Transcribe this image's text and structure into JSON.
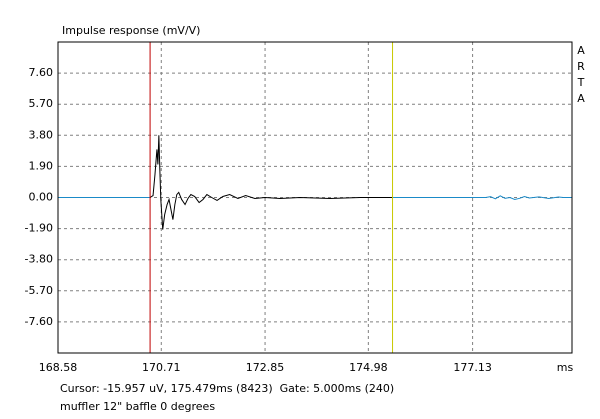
{
  "chart_data": {
    "type": "line",
    "title": "Impulse response (mV/V)",
    "brand": "ARTA",
    "x_label": "ms",
    "annotations": [
      "Cursor: -15.957 uV, 175.479ms (8423)  Gate: 5.000ms (240)",
      "muffler 12\" baffle 0 degrees"
    ],
    "xlim": [
      168.58,
      179.18
    ],
    "ylim": [
      -9.5,
      9.5
    ],
    "xticks": [
      168.58,
      170.71,
      172.85,
      174.98,
      177.13
    ],
    "yticks": [
      {
        "value": 7.6,
        "label": "7.60"
      },
      {
        "value": 5.7,
        "label": "5.70"
      },
      {
        "value": 3.8,
        "label": "3.80"
      },
      {
        "value": 1.9,
        "label": "1.90"
      },
      {
        "value": 0,
        "label": "0.00"
      },
      {
        "value": -1.9,
        "label": "-1.90"
      },
      {
        "value": -3.8,
        "label": "-3.80"
      },
      {
        "value": -5.7,
        "label": "-5.70"
      },
      {
        "value": -7.6,
        "label": "-7.60"
      }
    ],
    "grid": true,
    "markers": [
      {
        "x": 170.479,
        "color": "#c00000"
      },
      {
        "x": 175.479,
        "color": "#c8c800"
      }
    ],
    "series": [
      {
        "color": "#1a8ac8",
        "x": [
          168.58,
          170.48,
          null,
          175.48,
          177.4,
          177.5,
          177.6,
          177.7,
          177.8,
          177.9,
          178.0,
          178.1,
          178.2,
          178.3,
          178.5,
          178.7,
          178.9,
          179.0,
          179.18
        ],
        "values": [
          0,
          0,
          null,
          0,
          0,
          0.05,
          -0.08,
          0.1,
          -0.05,
          0,
          -0.12,
          -0.05,
          0.06,
          -0.03,
          0.04,
          -0.06,
          0.03,
          0,
          0
        ]
      },
      {
        "color": "#000000",
        "x": [
          170.48,
          170.54,
          170.58,
          170.62,
          170.64,
          170.66,
          170.68,
          170.7,
          170.74,
          170.78,
          170.83,
          170.87,
          170.91,
          170.95,
          170.99,
          171.03,
          171.07,
          171.13,
          171.2,
          171.26,
          171.32,
          171.4,
          171.49,
          171.57,
          171.65,
          171.75,
          171.86,
          171.98,
          172.12,
          172.29,
          172.45,
          172.64,
          172.85,
          173.16,
          173.57,
          174.19,
          174.81,
          175.48
        ],
        "values": [
          0,
          0.12,
          1.41,
          2.94,
          2.02,
          3.8,
          1.72,
          -0.12,
          -1.96,
          -1.04,
          -0.43,
          -0.12,
          -0.74,
          -1.35,
          -0.43,
          0.18,
          0.31,
          -0.12,
          -0.43,
          -0.06,
          0.18,
          0.06,
          -0.31,
          -0.12,
          0.18,
          0,
          -0.18,
          0.06,
          0.18,
          -0.06,
          0.12,
          -0.06,
          0,
          -0.06,
          0,
          -0.06,
          0,
          0
        ]
      }
    ]
  }
}
